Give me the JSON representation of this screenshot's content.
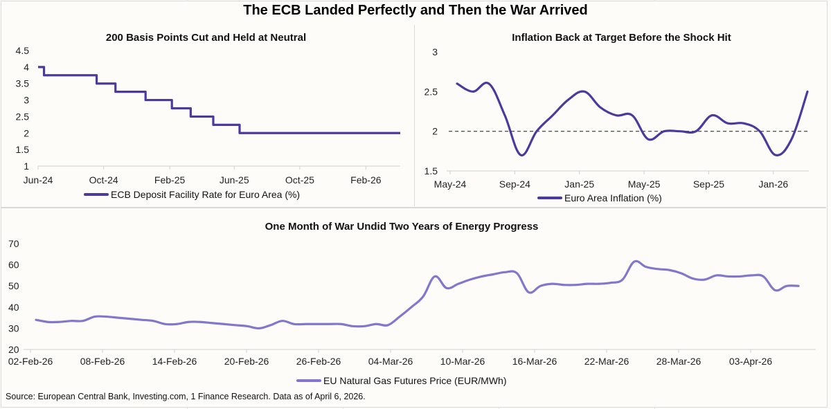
{
  "main_title": "The ECB Landed Perfectly and Then the War Arrived",
  "source": "Source: European Central Bank, Investing.com, 1 Finance Research. Data as of April 6, 2026.",
  "colors": {
    "rate_line": "#4b3a9e",
    "inflation_line": "#4b3a9e",
    "gas_line": "#8377cc",
    "target_line": "#555555"
  },
  "chart_data": [
    {
      "type": "line",
      "title": "200 Basis Points Cut and Held at Neutral",
      "xlabel": "",
      "ylabel": "",
      "ylim": [
        1,
        4.5
      ],
      "yticks": [
        "1",
        "1.5",
        "2",
        "2.5",
        "3",
        "3.5",
        "4",
        "4.5"
      ],
      "xticks": [
        "Jun-24",
        "Oct-24",
        "Feb-25",
        "Jun-25",
        "Oct-25",
        "Feb-26"
      ],
      "step": true,
      "grid": false,
      "legend": "bottom",
      "series": [
        {
          "name": "ECB Deposit Facility Rate for Euro Area (%)",
          "points": [
            [
              "2024-06-01",
              4.0
            ],
            [
              "2024-06-12",
              3.75
            ],
            [
              "2024-09-18",
              3.5
            ],
            [
              "2024-10-23",
              3.25
            ],
            [
              "2024-12-18",
              3.0
            ],
            [
              "2025-02-05",
              2.75
            ],
            [
              "2025-03-12",
              2.5
            ],
            [
              "2025-04-23",
              2.25
            ],
            [
              "2025-06-11",
              2.0
            ],
            [
              "2026-04-06",
              2.0
            ]
          ]
        }
      ]
    },
    {
      "type": "line",
      "title": "Inflation Back at Target Before the Shock Hit",
      "xlabel": "",
      "ylabel": "",
      "ylim": [
        1.5,
        3
      ],
      "yticks": [
        "1.5",
        "2",
        "2.5",
        "3"
      ],
      "xticks": [
        "May-24",
        "Sep-24",
        "Jan-25",
        "May-25",
        "Sep-25",
        "Jan-26"
      ],
      "grid": false,
      "legend": "bottom",
      "reference_line": {
        "value": 2.0,
        "style": "dashed"
      },
      "series": [
        {
          "name": "Euro Area Inflation (%)",
          "x": [
            "May-24",
            "Jun-24",
            "Jul-24",
            "Aug-24",
            "Sep-24",
            "Oct-24",
            "Nov-24",
            "Dec-24",
            "Jan-25",
            "Feb-25",
            "Mar-25",
            "Apr-25",
            "May-25",
            "Jun-25",
            "Jul-25",
            "Aug-25",
            "Sep-25",
            "Oct-25",
            "Nov-25",
            "Dec-25",
            "Jan-26",
            "Feb-26",
            "Mar-26"
          ],
          "values": [
            2.6,
            2.5,
            2.6,
            2.2,
            1.7,
            2.0,
            2.2,
            2.4,
            2.5,
            2.3,
            2.2,
            2.2,
            1.9,
            2.0,
            2.0,
            2.0,
            2.2,
            2.1,
            2.1,
            2.0,
            1.7,
            1.9,
            2.5
          ]
        }
      ]
    },
    {
      "type": "line",
      "title": "One Month of War Undid Two Years of Energy Progress",
      "xlabel": "",
      "ylabel": "",
      "ylim": [
        20,
        70
      ],
      "yticks": [
        "20",
        "30",
        "40",
        "50",
        "60",
        "70"
      ],
      "xticks": [
        "02-Feb-26",
        "08-Feb-26",
        "14-Feb-26",
        "20-Feb-26",
        "26-Feb-26",
        "04-Mar-26",
        "10-Mar-26",
        "16-Mar-26",
        "22-Mar-26",
        "28-Mar-26",
        "03-Apr-26"
      ],
      "grid": false,
      "legend": "bottom",
      "series": [
        {
          "name": "EU Natural Gas Futures Price (EUR/MWh)",
          "x_day_offset_from_02_Feb_26": [
            0,
            1,
            2,
            3,
            4,
            5,
            6,
            7,
            8,
            9,
            10,
            11,
            12,
            13,
            14,
            15,
            16,
            17,
            18,
            19,
            20,
            21,
            22,
            23,
            24,
            25,
            26,
            27,
            28,
            29,
            30,
            31,
            32,
            33,
            34,
            35,
            36,
            37,
            38,
            39,
            40,
            41,
            42,
            43,
            44,
            45,
            46,
            47,
            48,
            49,
            50,
            51,
            52,
            53,
            54,
            55,
            56,
            57,
            58,
            59,
            60,
            61,
            62,
            63,
            64,
            65
          ],
          "values": [
            34,
            33,
            33,
            33.5,
            33.5,
            35.5,
            35.5,
            35,
            34.5,
            34,
            33.5,
            32,
            32,
            33,
            33,
            32.5,
            32,
            31.5,
            31,
            30,
            31.5,
            33.5,
            32,
            32,
            32,
            32,
            32,
            31,
            31,
            32,
            31.5,
            35.5,
            40,
            45,
            54.5,
            49,
            51,
            53,
            54.5,
            55.5,
            56.5,
            56,
            47,
            50,
            51,
            50.5,
            50.5,
            51,
            51,
            51.5,
            53,
            61.5,
            59,
            58,
            57.5,
            56,
            53.5,
            53,
            55,
            54.5,
            54.5,
            55,
            54.5,
            48,
            50,
            50
          ]
        }
      ]
    }
  ]
}
